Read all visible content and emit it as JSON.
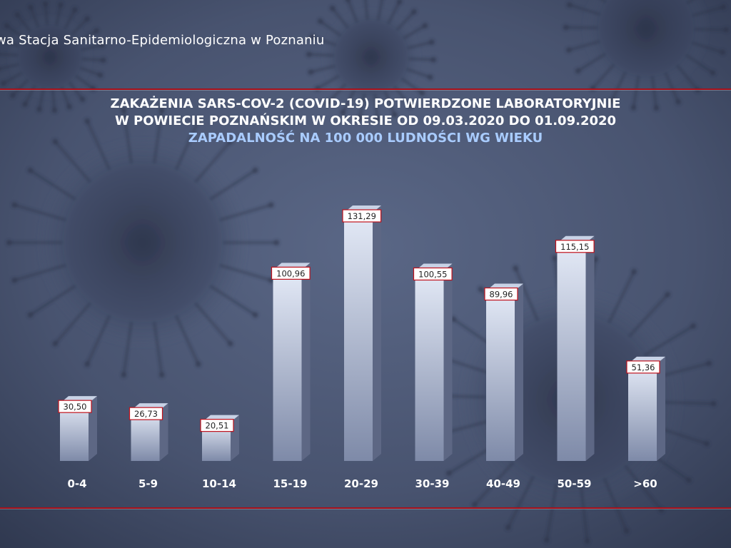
{
  "header": {
    "organization": "wa Stacja Sanitarno-Epidemiologiczna w Poznaniu"
  },
  "colors": {
    "rule": "#a8101a",
    "bar_front_top": "#e4eaf7",
    "bar_front_bottom": "#7e8aa8",
    "bar_side": "#5d6784",
    "bar_top": "#c8d2e6",
    "label_border": "#c0101a",
    "subtitle": "#a9ccff"
  },
  "chart_data": {
    "type": "bar",
    "title_lines": [
      "ZAKAŻENIA SARS-COV-2 (COVID-19) POTWIERDZONE LABORATORYJNIE",
      "W POWIECIE POZNAŃSKIM W OKRESIE OD 09.03.2020 DO 01.09.2020"
    ],
    "subtitle": "ZAPADALNOŚĆ NA 100 000 LUDNOŚCI WG WIEKU",
    "categories": [
      "0-4",
      "5-9",
      "10-14",
      "15-19",
      "20-29",
      "30-39",
      "40-49",
      "50-59",
      ">60"
    ],
    "values": [
      30.5,
      26.73,
      20.51,
      100.96,
      131.29,
      100.55,
      89.96,
      115.15,
      51.36
    ],
    "value_labels": [
      "30,50",
      "26,73",
      "20,51",
      "100,96",
      "131,29",
      "100,55",
      "89,96",
      "115,15",
      "51,36"
    ],
    "ylim": [
      0,
      140
    ],
    "grid": false,
    "legend": "none",
    "style": "3d-bar"
  }
}
